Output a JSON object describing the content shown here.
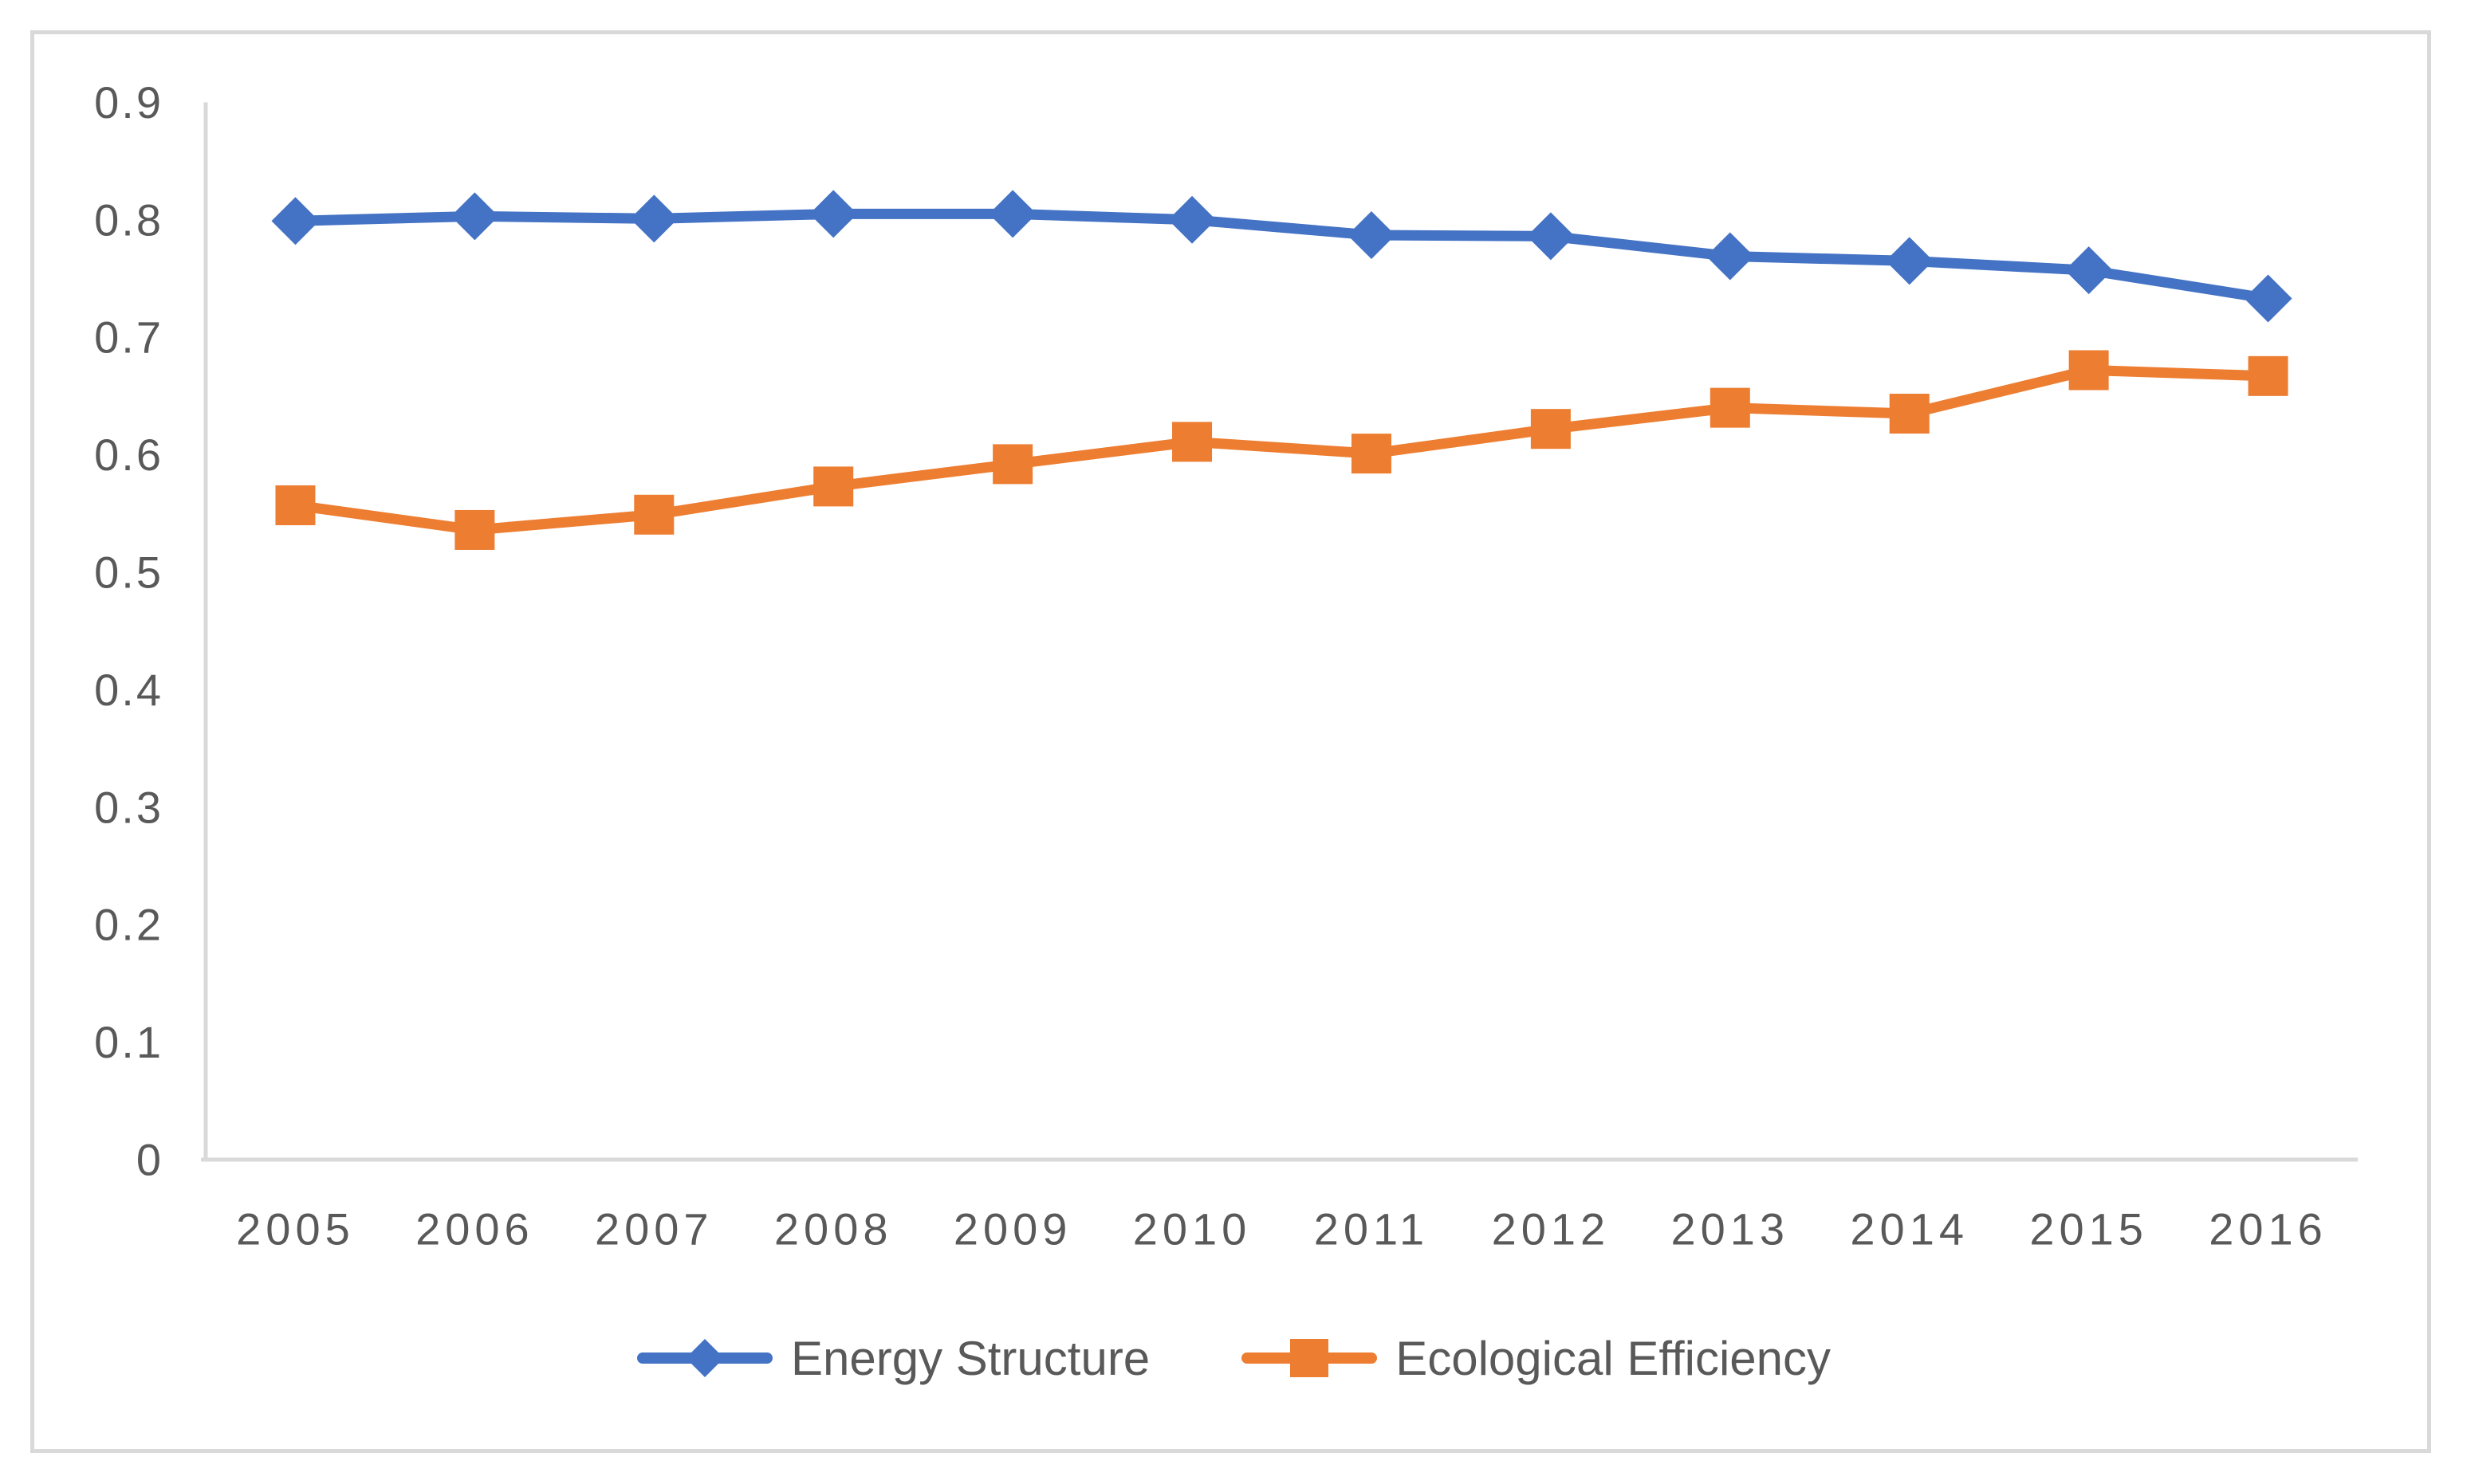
{
  "figure": {
    "background_color": "#FFFFFF",
    "border_color": "#D9D9D9"
  },
  "chart_data": {
    "type": "line",
    "title": "",
    "xlabel": "",
    "ylabel": "",
    "categories": [
      "2005",
      "2006",
      "2007",
      "2008",
      "2009",
      "2010",
      "2011",
      "2012",
      "2013",
      "2014",
      "2015",
      "2016"
    ],
    "series": [
      {
        "name": "Energy Structure",
        "color": "#4472C4",
        "marker": "diamond",
        "values": [
          0.799,
          0.803,
          0.801,
          0.805,
          0.805,
          0.8,
          0.787,
          0.786,
          0.769,
          0.765,
          0.757,
          0.733
        ]
      },
      {
        "name": "Ecological Efficiency",
        "color": "#ED7D31",
        "marker": "square",
        "values": [
          0.557,
          0.536,
          0.549,
          0.573,
          0.592,
          0.611,
          0.601,
          0.622,
          0.64,
          0.635,
          0.672,
          0.667
        ]
      }
    ],
    "ylim": [
      0,
      0.9
    ],
    "ytick_step": 0.1,
    "ytick_labels": [
      "0",
      "0.1",
      "0.2",
      "0.3",
      "0.4",
      "0.5",
      "0.6",
      "0.7",
      "0.8",
      "0.9"
    ],
    "grid": "off",
    "legend_position": "bottom",
    "axis_color": "#D9D9D9",
    "tick_label_color": "#595959"
  }
}
